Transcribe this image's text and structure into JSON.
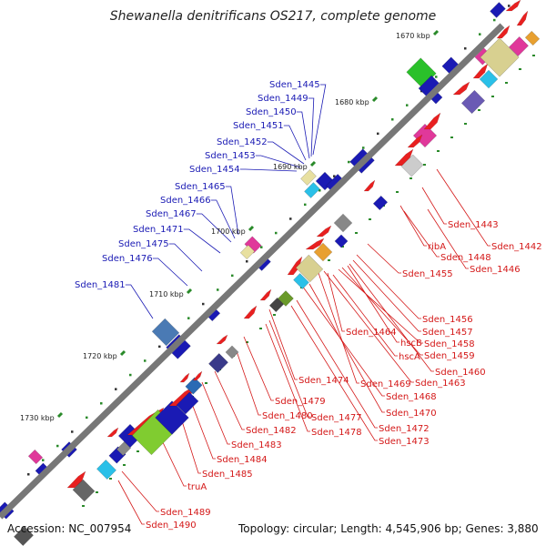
{
  "title": "Shewanella denitrificans OS217, complete genome",
  "accession_label": "Accession:",
  "accession": "NC_007954",
  "topology_label": "Topology: circular;",
  "length_label": "Length: 4,545,906 bp;",
  "genes_label": "Genes: 3,880",
  "ticks": [
    "1670 kbp",
    "1680 kbp",
    "1690 kbp",
    "1700 kbp",
    "1710 kbp",
    "1720 kbp",
    "1730 kbp"
  ],
  "labels_blue": [
    "Sden_1445",
    "Sden_1449",
    "Sden_1450",
    "Sden_1451",
    "Sden_1452",
    "Sden_1453",
    "Sden_1454",
    "Sden_1465",
    "Sden_1466",
    "Sden_1467",
    "Sden_1471",
    "Sden_1475",
    "Sden_1476",
    "Sden_1481"
  ],
  "labels_red": [
    "Sden_1443",
    "Sden_1442",
    "ribA",
    "Sden_1448",
    "Sden_1446",
    "Sden_1455",
    "Sden_1456",
    "Sden_1457",
    "Sden_1464",
    "hscB",
    "Sden_1458",
    "hscA",
    "Sden_1459",
    "Sden_1460",
    "Sden_1474",
    "Sden_1469",
    "Sden_1463",
    "Sden_1468",
    "Sden_1479",
    "Sden_1470",
    "Sden_1480",
    "Sden_1477",
    "Sden_1482",
    "Sden_1478",
    "Sden_1472",
    "Sden_1473",
    "Sden_1483",
    "Sden_1484",
    "Sden_1485",
    "truA",
    "Sden_1489",
    "Sden_1490"
  ],
  "colors": {
    "blue_label": "#1a1ab4",
    "red_label": "#d41818",
    "backbone": "#777777"
  }
}
